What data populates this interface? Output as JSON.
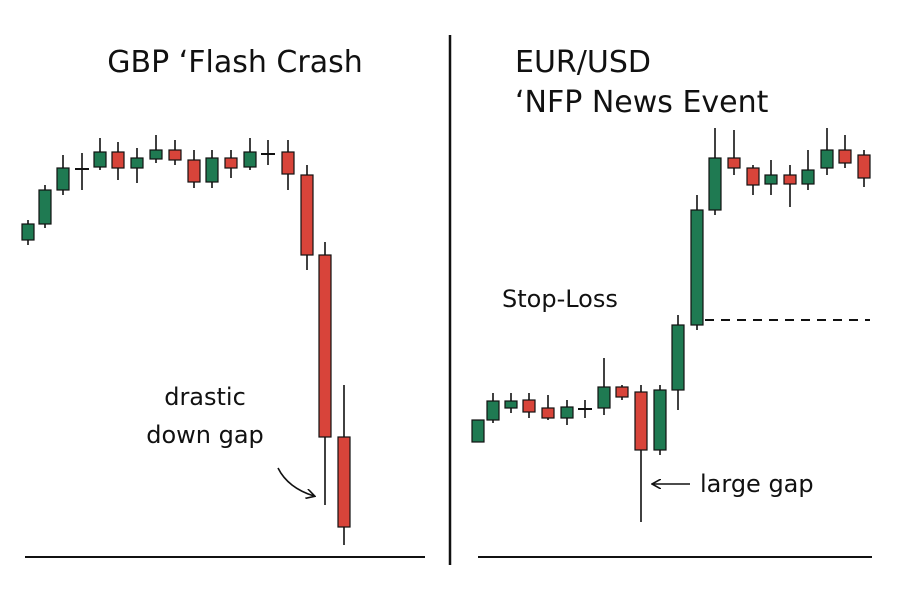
{
  "left": {
    "title": "GBP ‘Flash Crash",
    "annotation": [
      "drastic",
      "down gap"
    ]
  },
  "right": {
    "title": [
      "EUR/USD",
      "‘NFP News Event"
    ],
    "stop_label": "Stop-Loss",
    "annotation": "large gap"
  }
}
